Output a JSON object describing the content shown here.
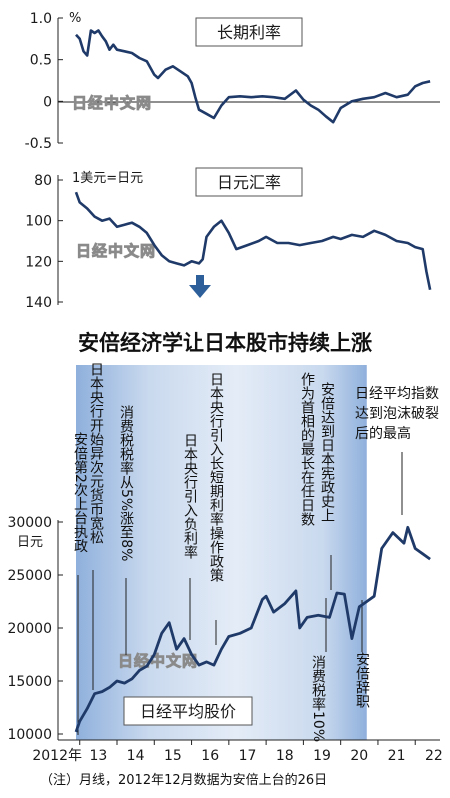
{
  "headline": "安倍经济学让日本股市持续上涨",
  "watermark": "日经中文网",
  "footnote": "（注）月线，2012年12月数据为安倍上台的26日",
  "x_axis": {
    "first_label": "2012年",
    "labels": [
      "13",
      "14",
      "15",
      "16",
      "17",
      "18",
      "19",
      "20",
      "21",
      "22"
    ]
  },
  "annotations": [
    {
      "text": "安倍第2次上台执政"
    },
    {
      "text": "日本央行开始异次元货币宽松"
    },
    {
      "text": "消费税税率从5%涨至8%"
    },
    {
      "text": "日本央行引入负利率"
    },
    {
      "text": "日本央行引入长短期利率操作政策"
    },
    {
      "text": "作为首相的最长在任日数"
    },
    {
      "text": "安倍达到日本宪政史上"
    },
    {
      "text": "日经平均指数达到泡沫破裂后的最高"
    },
    {
      "text": "消费税率10%"
    },
    {
      "text": "安倍辞职"
    }
  ],
  "colors": {
    "line": "#1f3a68",
    "band": "#b9cde8",
    "arrow": "#2d5f9a"
  },
  "chart_data": [
    {
      "type": "line",
      "title": "长期利率",
      "ylabel": "%",
      "yticks": [
        "1.0",
        "0.5",
        "0",
        "-0.5"
      ],
      "ylim": [
        -0.5,
        1.0
      ],
      "x": [
        2012.9,
        2013.0,
        2013.1,
        2013.2,
        2013.3,
        2013.4,
        2013.5,
        2013.6,
        2013.7,
        2013.8,
        2013.9,
        2014.0,
        2014.2,
        2014.4,
        2014.6,
        2014.8,
        2015.0,
        2015.1,
        2015.3,
        2015.5,
        2015.7,
        2015.9,
        2016.0,
        2016.1,
        2016.2,
        2016.4,
        2016.6,
        2016.8,
        2017.0,
        2017.3,
        2017.6,
        2017.9,
        2018.2,
        2018.5,
        2018.8,
        2019.0,
        2019.2,
        2019.4,
        2019.6,
        2019.8,
        2020.0,
        2020.3,
        2020.6,
        2020.9,
        2021.2,
        2021.5,
        2021.8,
        2022.0,
        2022.2,
        2022.4
      ],
      "values": [
        0.8,
        0.75,
        0.6,
        0.55,
        0.85,
        0.82,
        0.85,
        0.78,
        0.72,
        0.62,
        0.68,
        0.62,
        0.6,
        0.58,
        0.52,
        0.48,
        0.32,
        0.28,
        0.38,
        0.42,
        0.36,
        0.3,
        0.22,
        0.05,
        -0.1,
        -0.15,
        -0.2,
        -0.05,
        0.05,
        0.06,
        0.05,
        0.06,
        0.05,
        0.03,
        0.13,
        0.02,
        -0.05,
        -0.1,
        -0.18,
        -0.25,
        -0.08,
        0.0,
        0.03,
        0.05,
        0.1,
        0.05,
        0.08,
        0.18,
        0.22,
        0.24
      ]
    },
    {
      "type": "line",
      "title": "日元汇率",
      "ylabel": "1美元=日元",
      "yticks": [
        "80",
        "100",
        "120",
        "140"
      ],
      "ylim": [
        80,
        140
      ],
      "inverted": true,
      "x": [
        2012.9,
        2013.0,
        2013.2,
        2013.4,
        2013.6,
        2013.8,
        2014.0,
        2014.2,
        2014.4,
        2014.6,
        2014.8,
        2015.0,
        2015.2,
        2015.4,
        2015.6,
        2015.8,
        2016.0,
        2016.2,
        2016.3,
        2016.4,
        2016.6,
        2016.8,
        2017.0,
        2017.2,
        2017.5,
        2017.8,
        2018.0,
        2018.3,
        2018.6,
        2018.9,
        2019.2,
        2019.5,
        2019.8,
        2020.0,
        2020.3,
        2020.6,
        2020.9,
        2021.2,
        2021.5,
        2021.8,
        2022.0,
        2022.2,
        2022.3,
        2022.4
      ],
      "values": [
        86,
        91,
        94,
        98,
        100,
        99,
        103,
        102,
        101,
        103,
        106,
        112,
        117,
        120,
        121,
        122,
        120,
        121,
        119,
        108,
        103,
        100,
        106,
        114,
        112,
        110,
        108,
        111,
        111,
        112,
        111,
        110,
        108,
        109,
        107,
        108,
        105,
        107,
        110,
        111,
        113,
        114,
        125,
        134
      ]
    },
    {
      "type": "line",
      "title": "日经平均股价",
      "ylabel": "日元",
      "yticks": [
        "30000",
        "25000",
        "20000",
        "15000",
        "10000"
      ],
      "ylim": [
        10000,
        30000
      ],
      "shaded_range": [
        2012.9,
        2020.7
      ],
      "x": [
        2012.9,
        2013.0,
        2013.2,
        2013.4,
        2013.6,
        2013.8,
        2014.0,
        2014.2,
        2014.4,
        2014.6,
        2014.8,
        2015.0,
        2015.2,
        2015.4,
        2015.6,
        2015.8,
        2016.0,
        2016.2,
        2016.4,
        2016.6,
        2016.8,
        2017.0,
        2017.3,
        2017.6,
        2017.9,
        2018.0,
        2018.2,
        2018.5,
        2018.8,
        2018.9,
        2019.1,
        2019.4,
        2019.7,
        2019.9,
        2020.1,
        2020.3,
        2020.5,
        2020.7,
        2020.9,
        2021.1,
        2021.4,
        2021.7,
        2021.8,
        2022.0,
        2022.2,
        2022.4
      ],
      "values": [
        10200,
        11200,
        12400,
        13800,
        14000,
        14400,
        15000,
        14800,
        15200,
        16000,
        16400,
        17500,
        19500,
        20500,
        18000,
        19000,
        17500,
        16500,
        16800,
        16500,
        18000,
        19200,
        19500,
        20000,
        22700,
        23000,
        21500,
        22300,
        23500,
        20000,
        21000,
        21200,
        21000,
        23300,
        23200,
        19000,
        22000,
        22500,
        23000,
        27500,
        29000,
        28000,
        29500,
        27500,
        27000,
        26500
      ]
    }
  ]
}
